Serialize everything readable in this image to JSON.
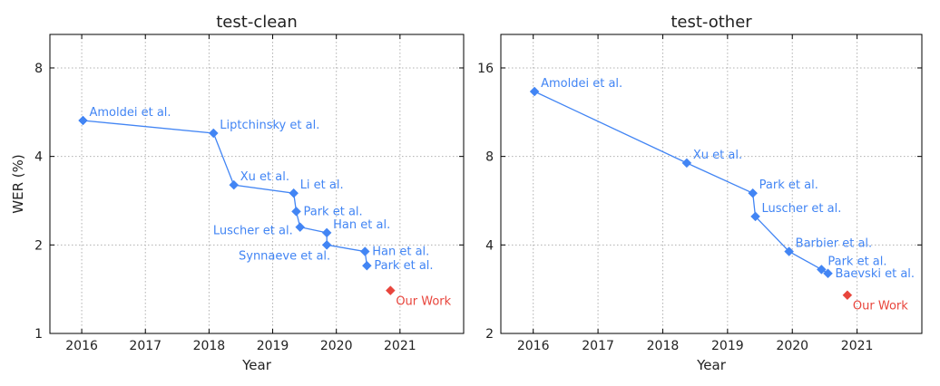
{
  "chart_data": [
    {
      "type": "line",
      "title": "test-clean",
      "xlabel": "Year",
      "ylabel": "WER (%)",
      "yscale": "log2",
      "xlim": [
        2015.5,
        2022.0
      ],
      "ylim": [
        1,
        10.4
      ],
      "xticks": [
        "2016",
        "2017",
        "2018",
        "2019",
        "2020",
        "2021"
      ],
      "yticks": [
        "1",
        "2",
        "4",
        "8"
      ],
      "grid": true,
      "series_color": "#4285f4",
      "highlight_color": "#e8453c",
      "points": [
        {
          "x": 2016.02,
          "y": 5.3,
          "label": "Amoldei et al.",
          "label_pos": "above-right"
        },
        {
          "x": 2018.07,
          "y": 4.8,
          "label": "Liptchinsky et al.",
          "label_pos": "above-right"
        },
        {
          "x": 2018.39,
          "y": 3.2,
          "label": "Xu et al.",
          "label_pos": "above-right"
        },
        {
          "x": 2019.33,
          "y": 3.0,
          "label": "Li et al.",
          "label_pos": "above-right"
        },
        {
          "x": 2019.37,
          "y": 2.6,
          "label": "Park et al.",
          "label_pos": "right"
        },
        {
          "x": 2019.43,
          "y": 2.3,
          "label": "Luscher et al.",
          "label_pos": "left"
        },
        {
          "x": 2019.85,
          "y": 2.2,
          "label": "Han et al.",
          "label_pos": "above-right"
        },
        {
          "x": 2019.85,
          "y": 2.0,
          "label": "Synnaeve et al.",
          "label_pos": "below-left"
        },
        {
          "x": 2020.45,
          "y": 1.9,
          "label": "Han et al.",
          "label_pos": "right"
        },
        {
          "x": 2020.48,
          "y": 1.7,
          "label": "Park et al.",
          "label_pos": "right"
        }
      ],
      "highlight": {
        "x": 2020.85,
        "y": 1.4,
        "label": "Our Work"
      }
    },
    {
      "type": "line",
      "title": "test-other",
      "xlabel": "Year",
      "ylabel": "",
      "yscale": "log2",
      "xlim": [
        2015.5,
        2022.0
      ],
      "ylim": [
        2,
        20.8
      ],
      "xticks": [
        "2016",
        "2017",
        "2018",
        "2019",
        "2020",
        "2021"
      ],
      "yticks": [
        "2",
        "4",
        "8",
        "16"
      ],
      "grid": true,
      "series_color": "#4285f4",
      "highlight_color": "#e8453c",
      "points": [
        {
          "x": 2016.02,
          "y": 13.3,
          "label": "Amoldei et al.",
          "label_pos": "above-right"
        },
        {
          "x": 2018.37,
          "y": 7.6,
          "label": "Xu et al.",
          "label_pos": "above-right"
        },
        {
          "x": 2019.39,
          "y": 6.0,
          "label": "Park et al.",
          "label_pos": "above-right"
        },
        {
          "x": 2019.43,
          "y": 5.0,
          "label": "Luscher et al.",
          "label_pos": "above-right"
        },
        {
          "x": 2019.95,
          "y": 3.8,
          "label": "Barbier et al.",
          "label_pos": "above-right"
        },
        {
          "x": 2020.45,
          "y": 3.3,
          "label": "Park et al.",
          "label_pos": "above-right"
        },
        {
          "x": 2020.55,
          "y": 3.2,
          "label": "Baevski et al.",
          "label_pos": "right"
        }
      ],
      "highlight": {
        "x": 2020.85,
        "y": 2.7,
        "label": "Our Work"
      }
    }
  ]
}
